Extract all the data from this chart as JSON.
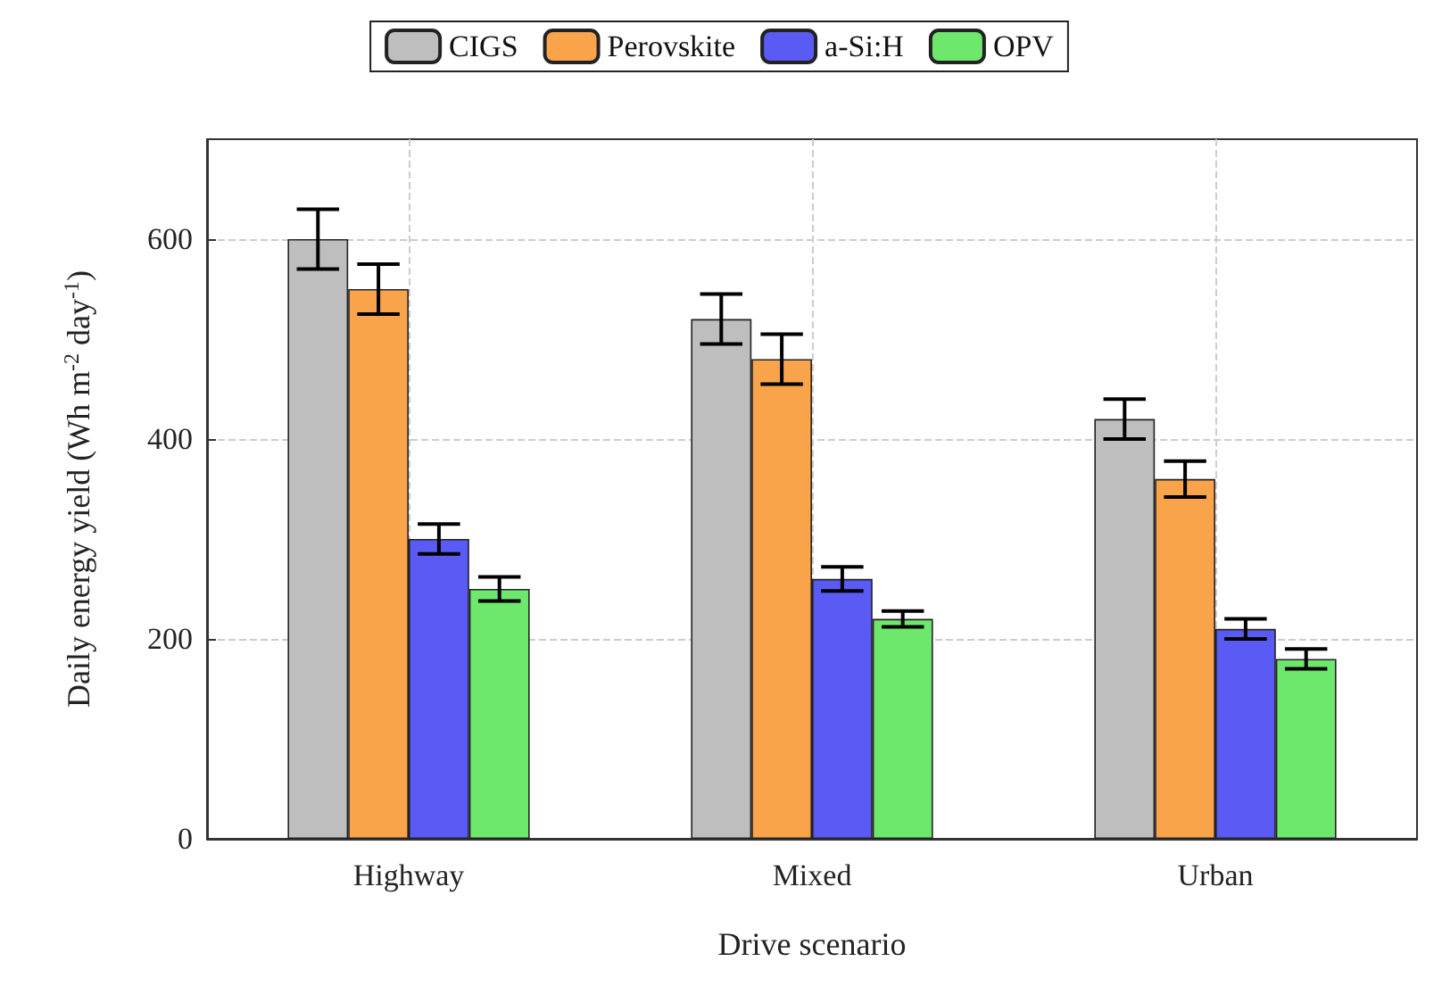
{
  "chart_data": {
    "type": "bar",
    "xlabel": "Drive scenario",
    "ylabel": "Daily energy yield (Wh m$^{-2}$ day$^{-1}$)",
    "categories": [
      "Highway",
      "Mixed",
      "Urban"
    ],
    "series": [
      {
        "name": "CIGS",
        "color": "#bebebe",
        "values": [
          600,
          520,
          420
        ],
        "errors": [
          30,
          25,
          20
        ]
      },
      {
        "name": "Perovskite",
        "color": "#f9a34a",
        "values": [
          550,
          480,
          360
        ],
        "errors": [
          25,
          25,
          18
        ]
      },
      {
        "name": "a-Si:H",
        "color": "#5a5af5",
        "values": [
          300,
          260,
          210
        ],
        "errors": [
          15,
          12,
          10
        ]
      },
      {
        "name": "OPV",
        "color": "#6de86d",
        "values": [
          250,
          220,
          180
        ],
        "errors": [
          12,
          8,
          10
        ]
      }
    ],
    "ylim": [
      0,
      700
    ],
    "yticks": [
      0,
      200,
      400,
      600
    ],
    "grid": true,
    "legend": "top"
  }
}
